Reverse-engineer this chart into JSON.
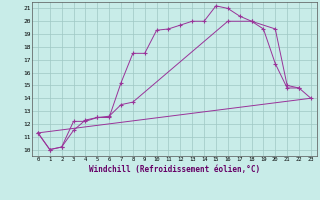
{
  "bg_color": "#c8ece8",
  "grid_color": "#b0d0cc",
  "line_color": "#993399",
  "xlabel": "Windchill (Refroidissement éolien,°C)",
  "xlim": [
    -0.5,
    23.5
  ],
  "ylim": [
    9.5,
    21.5
  ],
  "line1_x": [
    0,
    1,
    2,
    3,
    4,
    5,
    6,
    7,
    8,
    9,
    10,
    11,
    12,
    13,
    14,
    15,
    16,
    17,
    18,
    19,
    20,
    21,
    22
  ],
  "line1_y": [
    11.3,
    10.0,
    10.2,
    11.5,
    12.3,
    12.5,
    12.5,
    15.2,
    17.5,
    17.5,
    19.3,
    19.4,
    19.7,
    20.0,
    20.0,
    21.2,
    21.0,
    20.4,
    20.0,
    19.4,
    16.7,
    14.8,
    14.8
  ],
  "line2_x": [
    0,
    1,
    2,
    3,
    4,
    5,
    6,
    7,
    8,
    16,
    18,
    20,
    21,
    22,
    23
  ],
  "line2_y": [
    11.3,
    10.0,
    10.2,
    12.2,
    12.2,
    12.5,
    12.6,
    13.5,
    13.7,
    20.0,
    20.0,
    19.4,
    15.0,
    14.8,
    14.0
  ],
  "line3_x": [
    0,
    23
  ],
  "line3_y": [
    11.3,
    14.0
  ]
}
